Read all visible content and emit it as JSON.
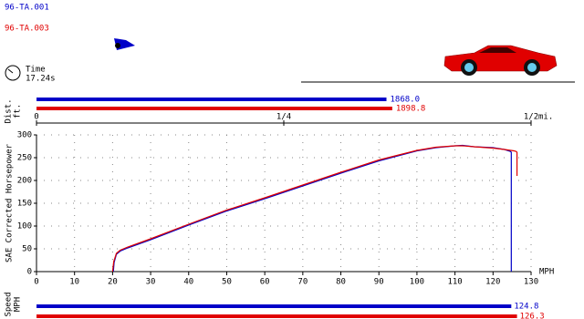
{
  "runs": [
    {
      "name": "96-TA.001",
      "color": "#0000c8"
    },
    {
      "name": "96-TA.003",
      "color": "#e00000"
    }
  ],
  "time": {
    "label": "Time",
    "value": "17.24s"
  },
  "distance": {
    "label": "Dist.",
    "unit": "ft.",
    "axis_unit": "mi.",
    "values": [
      1868.0,
      1898.8
    ],
    "value_labels": [
      "1868.0",
      "1898.8"
    ],
    "xlim": [
      0,
      2640
    ],
    "xticks": [
      0,
      {
        "value": 1320,
        "label": "1/4"
      },
      {
        "value": 2640,
        "label": "1/2"
      }
    ]
  },
  "speed": {
    "label": "Speed",
    "unit": "MPH",
    "values": [
      124.8,
      126.3
    ],
    "value_labels": [
      "124.8",
      "126.3"
    ],
    "xlim": [
      0,
      130
    ]
  },
  "chart_data": {
    "type": "line",
    "ylabel": "SAE Corrected Horsepower",
    "xlabel": "MPH",
    "xlim": [
      0,
      130
    ],
    "xticks": [
      0,
      10,
      20,
      30,
      40,
      50,
      60,
      70,
      80,
      90,
      100,
      110,
      120,
      130
    ],
    "ylim": [
      0,
      300
    ],
    "yticks": [
      0,
      50,
      100,
      150,
      200,
      250,
      300
    ],
    "grid": true,
    "series": [
      {
        "name": "96-TA.001",
        "color": "#0000c8",
        "x": [
          20.2,
          20.4,
          21,
          22,
          24,
          30,
          40,
          50,
          60,
          70,
          80,
          90,
          100,
          105,
          110,
          112,
          115,
          120,
          123,
          124.5,
          124.8,
          124.8
        ],
        "values": [
          0,
          20,
          38,
          45,
          52,
          70,
          102,
          133,
          160,
          188,
          216,
          243,
          265,
          272,
          276,
          277,
          274,
          272,
          268,
          264,
          262,
          0
        ]
      },
      {
        "name": "96-TA.003",
        "color": "#e00000",
        "x": [
          20.0,
          20.3,
          21,
          22,
          24,
          30,
          40,
          50,
          60,
          70,
          80,
          90,
          100,
          105,
          110,
          112,
          115,
          120,
          123,
          125.5,
          126.0,
          126.3,
          126.3
        ],
        "values": [
          0,
          22,
          40,
          47,
          54,
          72,
          104,
          135,
          162,
          190,
          218,
          245,
          266,
          273,
          276,
          276,
          274,
          271,
          268,
          265,
          264,
          262,
          210
        ]
      }
    ]
  }
}
